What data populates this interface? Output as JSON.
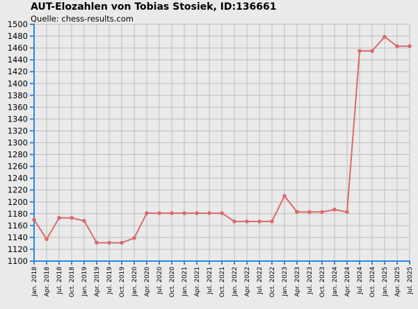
{
  "chart_data": {
    "type": "line",
    "title": "AUT-Elozahlen von Tobias Stosiek, ID:136661",
    "subtitle": "Quelle: chess-results.com",
    "xlabel": "",
    "ylabel": "",
    "ylim": [
      1100,
      1500
    ],
    "ytick_step": 20,
    "grid": true,
    "categories": [
      "Jan. 2018",
      "Apr. 2018",
      "Jul. 2018",
      "Oct. 2018",
      "Jan. 2019",
      "Apr. 2019",
      "Jul. 2019",
      "Oct. 2019",
      "Jan. 2020",
      "Apr. 2020",
      "Jul. 2020",
      "Oct. 2020",
      "Jan. 2021",
      "Apr. 2021",
      "Jul. 2021",
      "Oct. 2021",
      "Jan. 2022",
      "Apr. 2022",
      "Jul. 2022",
      "Oct. 2022",
      "Jan. 2023",
      "Apr. 2023",
      "Jul. 2023",
      "Oct. 2023",
      "Jan. 2024",
      "Apr. 2024",
      "Jul. 2024",
      "Oct. 2024",
      "Jan. 2025",
      "Apr. 2025",
      "Jul. 2025"
    ],
    "series": [
      {
        "values": [
          1170,
          1137,
          1173,
          1173,
          1168,
          1131,
          1131,
          1131,
          1139,
          1181,
          1181,
          1181,
          1181,
          1181,
          1181,
          1181,
          1167,
          1167,
          1167,
          1167,
          1210,
          1183,
          1183,
          1183,
          1187,
          1183,
          1455,
          1455,
          1479,
          1463,
          1463
        ],
        "color": "#d96b6b"
      }
    ],
    "colors": {
      "background": "#eaeaea",
      "grid": "#bdbdbd",
      "axis": "#2f86e0"
    }
  }
}
